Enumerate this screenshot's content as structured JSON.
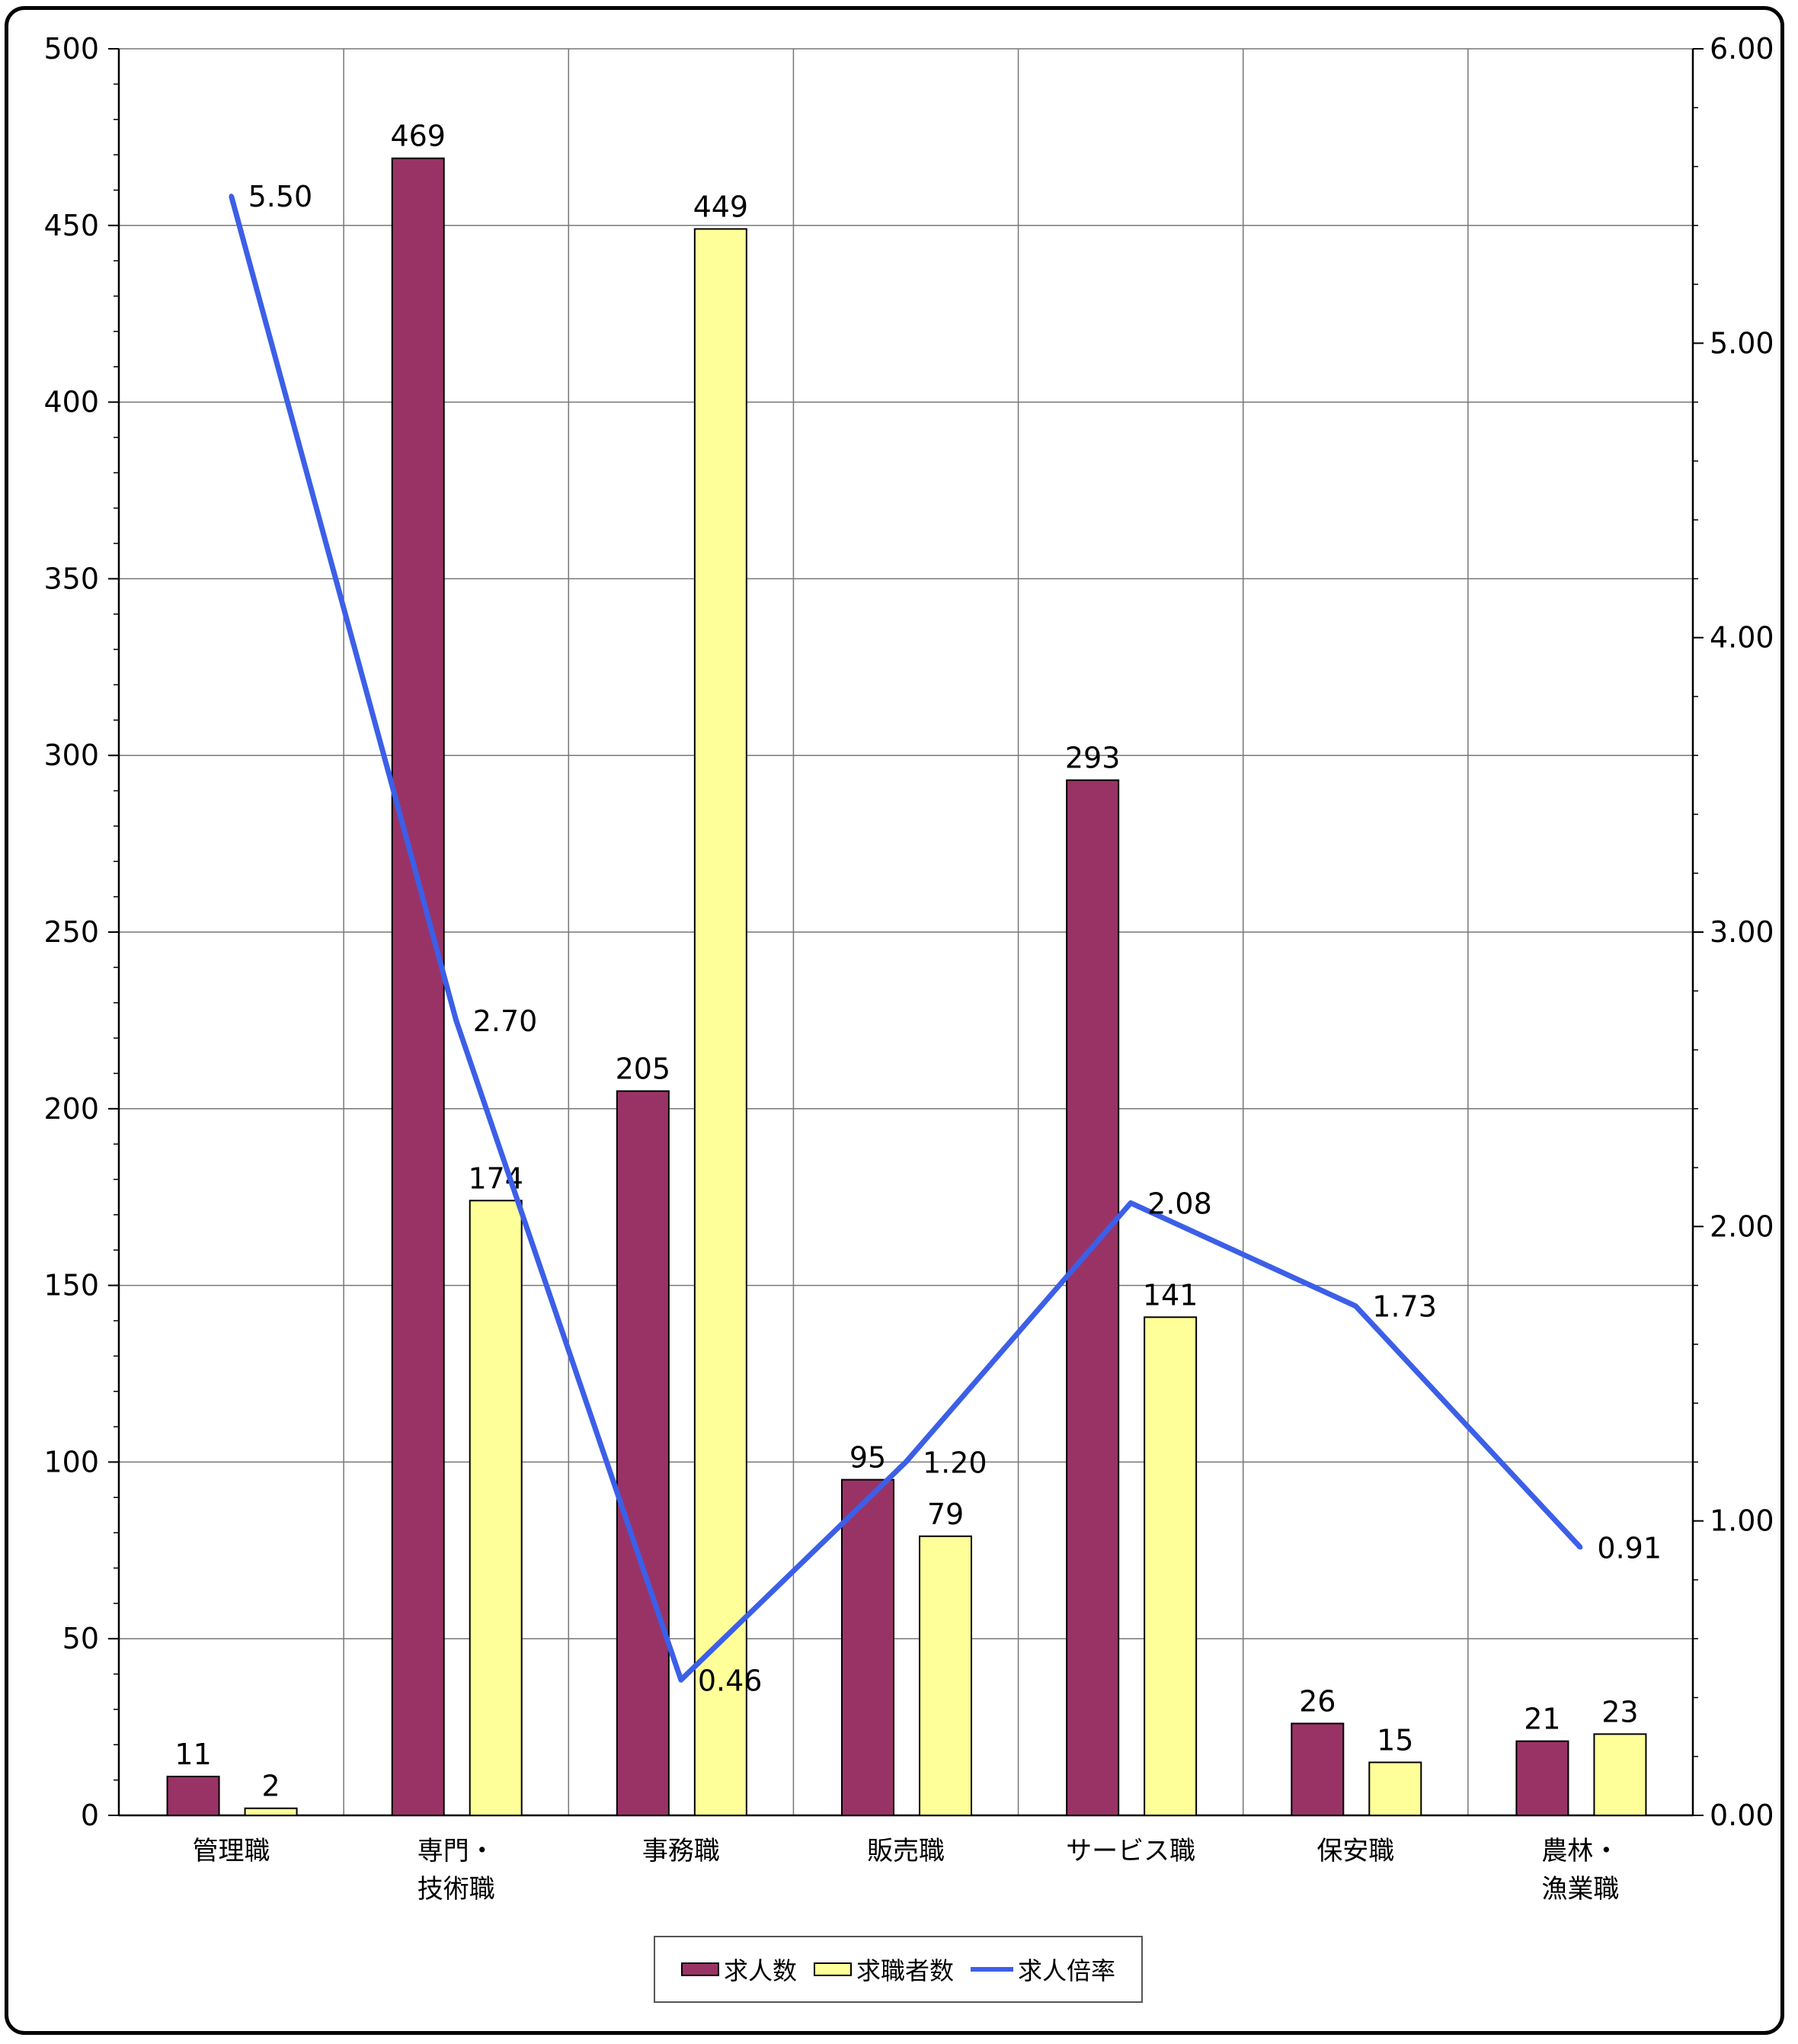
{
  "chart_data": {
    "type": "bar",
    "categories": [
      [
        "管理職"
      ],
      [
        "専門・",
        "技術職"
      ],
      [
        "事務職"
      ],
      [
        "販売職"
      ],
      [
        "サービス職"
      ],
      [
        "保安職"
      ],
      [
        "農林・",
        "漁業職"
      ]
    ],
    "series": [
      {
        "name": "求人数",
        "kind": "bar",
        "axis": "left",
        "color": "#993366",
        "values": [
          11,
          469,
          205,
          95,
          293,
          26,
          21
        ],
        "labels": [
          "11",
          "469",
          "205",
          "95",
          "293",
          "26",
          "21"
        ]
      },
      {
        "name": "求職者数",
        "kind": "bar",
        "axis": "left",
        "color": "#ffff99",
        "values": [
          2,
          174,
          449,
          79,
          141,
          15,
          23
        ],
        "labels": [
          "2",
          "174",
          "449",
          "79",
          "141",
          "15",
          "23"
        ]
      },
      {
        "name": "求人倍率",
        "kind": "line",
        "axis": "right",
        "color": "#3c5fe8",
        "values": [
          5.5,
          2.7,
          0.46,
          1.2,
          2.08,
          1.73,
          0.91
        ],
        "labels": [
          "5.50",
          "2.70",
          "0.46",
          "1.20",
          "2.08",
          "1.73",
          "0.91"
        ]
      }
    ],
    "y_left": {
      "range": [
        0,
        500
      ],
      "ticks": [
        "0",
        "50",
        "100",
        "150",
        "200",
        "250",
        "300",
        "350",
        "400",
        "450",
        "500"
      ]
    },
    "y_right": {
      "range": [
        0,
        6
      ],
      "ticks": [
        "0.00",
        "1.00",
        "2.00",
        "3.00",
        "4.00",
        "5.00",
        "6.00"
      ]
    },
    "grid": true,
    "legend_position": "bottom-center"
  },
  "legend": [
    {
      "label": "求人数",
      "color": "#993366",
      "shape": "bar"
    },
    {
      "label": "求職者数",
      "color": "#ffff99",
      "shape": "bar"
    },
    {
      "label": "求人倍率",
      "color": "#3c5fe8",
      "shape": "line"
    }
  ]
}
